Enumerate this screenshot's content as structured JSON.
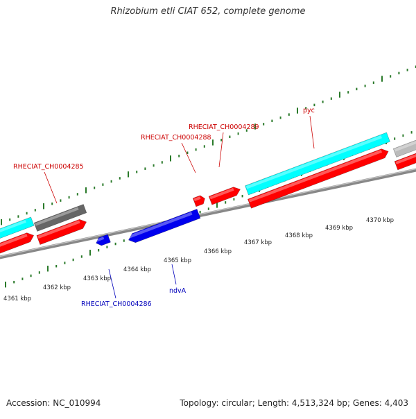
{
  "title": "Rhizobium etli CIAT 652, complete genome",
  "footer": {
    "accession": "Accession: NC_010994",
    "summary": "Topology: circular; Length: 4,513,324 bp; Genes: 4,403"
  },
  "colors": {
    "forward_gene": "#ff0000",
    "reverse_gene": "#0000ee",
    "cds_cyan": "#00ffff",
    "other_gray": "#666666",
    "other_lightgray": "#bbbbbb",
    "tick": "#2a7a2a",
    "backbone": "#888888",
    "label_red": "#cc0000",
    "label_blue": "#0000bb"
  },
  "kbp_labels": [
    "4361 kbp",
    "4362 kbp",
    "4363 kbp",
    "4364 kbp",
    "4365 kbp",
    "4366 kbp",
    "4367 kbp",
    "4368 kbp",
    "4369 kbp",
    "4370 kbp"
  ],
  "gene_labels": [
    {
      "text": "RHECIAT_CH0004285",
      "strand": "forward"
    },
    {
      "text": "RHECIAT_CH0004288",
      "strand": "forward"
    },
    {
      "text": "RHECIAT_CH0004289",
      "strand": "forward"
    },
    {
      "text": "pyc",
      "strand": "forward"
    },
    {
      "text": "RHECIAT_CH0004286",
      "strand": "reverse"
    },
    {
      "text": "ndvA",
      "strand": "reverse"
    }
  ]
}
